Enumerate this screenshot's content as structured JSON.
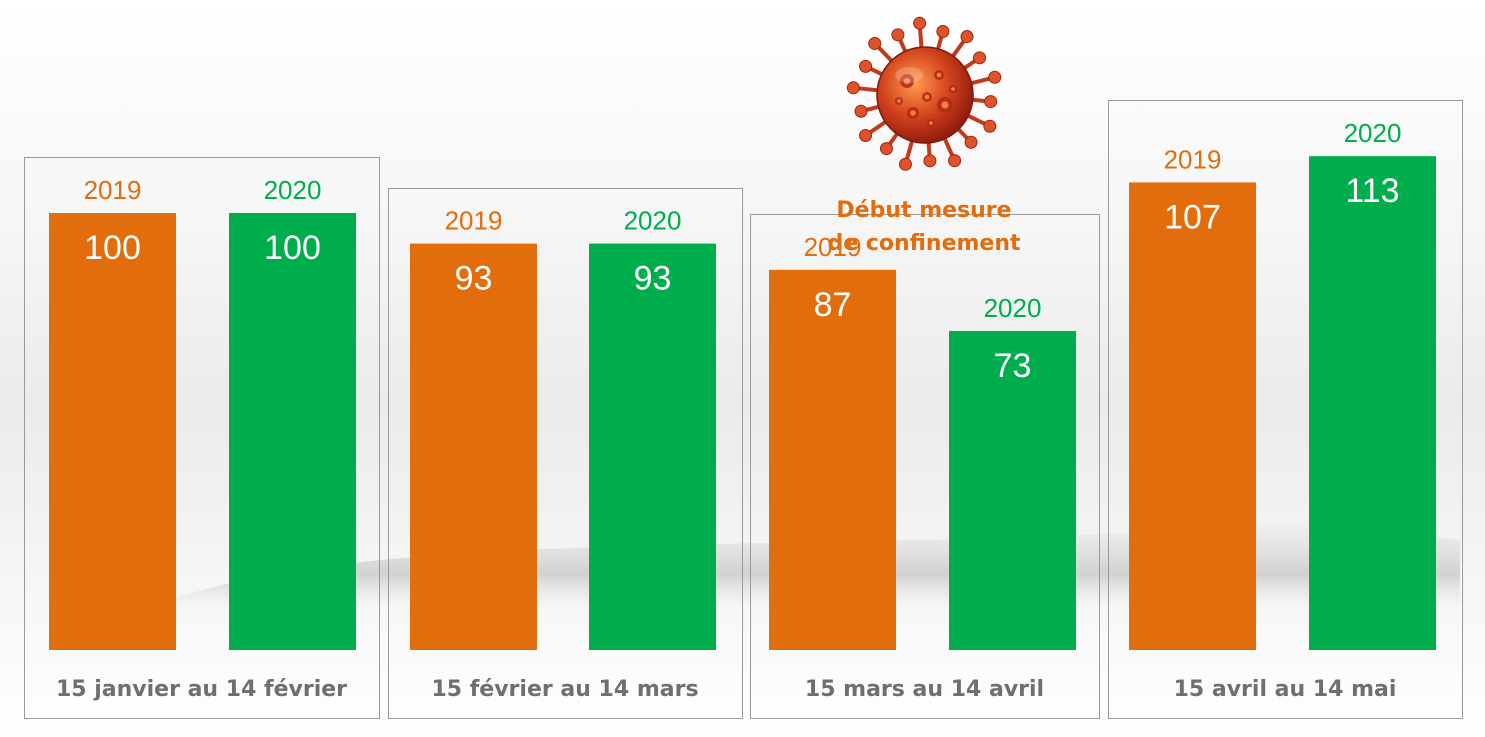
{
  "chart_data": {
    "type": "bar",
    "categories": [
      "15 janvier au 14 février",
      "15 février au 14 mars",
      "15 mars au 14 avril",
      "15 avril au 14 mai"
    ],
    "series": [
      {
        "name": "2019",
        "color": "#e16d0d",
        "values": [
          100,
          93,
          87,
          107
        ]
      },
      {
        "name": "2020",
        "color": "#00ad4d",
        "values": [
          100,
          93,
          73,
          113
        ]
      }
    ],
    "ylim": [
      0,
      113
    ],
    "annotation": {
      "lines": [
        "Début mesure",
        "de confinement"
      ],
      "color": "#e16d0d",
      "icon": "coronavirus-icon",
      "category": "15 mars au 14 avril"
    },
    "axis_label_color": "#6f6f6f",
    "grid": false
  }
}
